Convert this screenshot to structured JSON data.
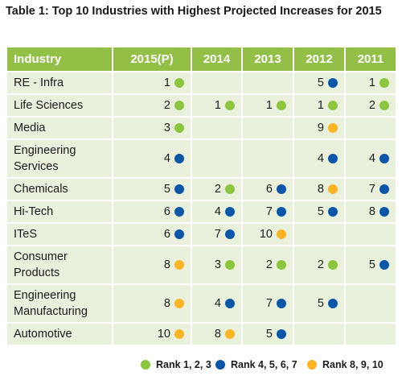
{
  "title": "Table 1: Top 10 Industries with Highest Projected Increases for 2015",
  "colors": {
    "green": "#8cc63f",
    "blue": "#0b56a8",
    "orange": "#fbb524",
    "header_bg": "#92c047",
    "row_bg": "#e9f1dc"
  },
  "table": {
    "headers": [
      "Industry",
      "2015(P)",
      "2014",
      "2013",
      "2012",
      "2011"
    ],
    "rows": [
      {
        "industry": "RE - Infra",
        "cells": [
          {
            "v": "1",
            "c": "green"
          },
          null,
          null,
          {
            "v": "5",
            "c": "blue"
          },
          {
            "v": "1",
            "c": "green"
          }
        ]
      },
      {
        "industry": "Life Sciences",
        "cells": [
          {
            "v": "2",
            "c": "green"
          },
          {
            "v": "1",
            "c": "green"
          },
          {
            "v": "1",
            "c": "green"
          },
          {
            "v": "1",
            "c": "green"
          },
          {
            "v": "2",
            "c": "green"
          }
        ]
      },
      {
        "industry": "Media",
        "cells": [
          {
            "v": "3",
            "c": "green"
          },
          null,
          null,
          {
            "v": "9",
            "c": "orange"
          },
          null
        ]
      },
      {
        "industry": "Engineering Services",
        "cells": [
          {
            "v": "4",
            "c": "blue"
          },
          null,
          null,
          {
            "v": "4",
            "c": "blue"
          },
          {
            "v": "4",
            "c": "blue"
          }
        ]
      },
      {
        "industry": "Chemicals",
        "cells": [
          {
            "v": "5",
            "c": "blue"
          },
          {
            "v": "2",
            "c": "green"
          },
          {
            "v": "6",
            "c": "blue"
          },
          {
            "v": "8",
            "c": "orange"
          },
          {
            "v": "7",
            "c": "blue"
          }
        ]
      },
      {
        "industry": "Hi-Tech",
        "cells": [
          {
            "v": "6",
            "c": "blue"
          },
          {
            "v": "4",
            "c": "blue"
          },
          {
            "v": "7",
            "c": "blue"
          },
          {
            "v": "5",
            "c": "blue"
          },
          {
            "v": "8",
            "c": "blue"
          }
        ]
      },
      {
        "industry": "ITeS",
        "cells": [
          {
            "v": "6",
            "c": "blue"
          },
          {
            "v": "7",
            "c": "blue"
          },
          {
            "v": "10",
            "c": "orange"
          },
          null,
          null
        ]
      },
      {
        "industry": "Consumer Products",
        "cells": [
          {
            "v": "8",
            "c": "orange"
          },
          {
            "v": "3",
            "c": "green"
          },
          {
            "v": "2",
            "c": "green"
          },
          {
            "v": "2",
            "c": "green"
          },
          {
            "v": "5",
            "c": "blue"
          }
        ]
      },
      {
        "industry": "Engineering Manufacturing",
        "cells": [
          {
            "v": "8",
            "c": "orange"
          },
          {
            "v": "4",
            "c": "blue"
          },
          {
            "v": "7",
            "c": "blue"
          },
          {
            "v": "5",
            "c": "blue"
          },
          null
        ]
      },
      {
        "industry": "Automotive",
        "cells": [
          {
            "v": "10",
            "c": "orange"
          },
          {
            "v": "8",
            "c": "orange"
          },
          {
            "v": "5",
            "c": "blue"
          },
          null,
          null
        ]
      }
    ]
  },
  "legend": [
    {
      "label": "Rank 1, 2, 3",
      "c": "green"
    },
    {
      "label": "Rank 4, 5, 6, 7",
      "c": "blue"
    },
    {
      "label": "Rank 8, 9, 10",
      "c": "orange"
    }
  ]
}
